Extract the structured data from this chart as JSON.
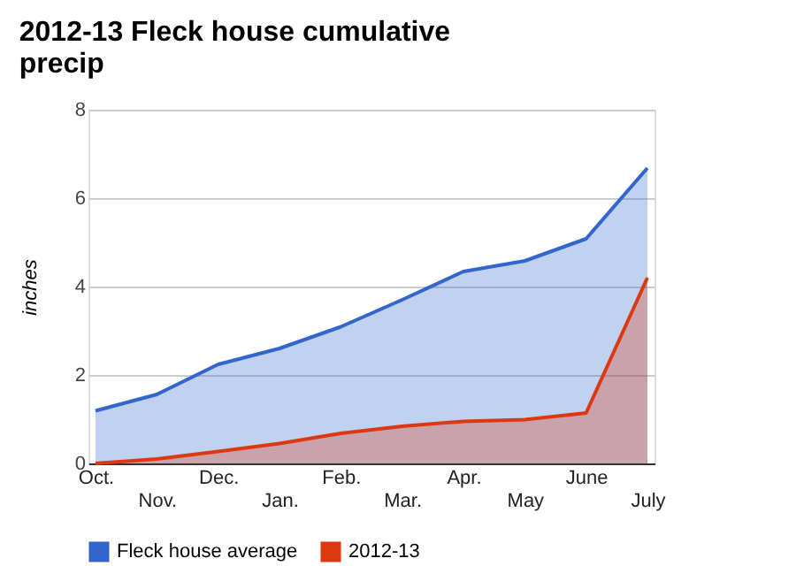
{
  "chart_data": {
    "type": "area",
    "title": "2012-13 Fleck house cumulative precip",
    "ylabel": "inches",
    "categories": [
      "Oct.",
      "Nov.",
      "Dec.",
      "Jan.",
      "Feb.",
      "Mar.",
      "Apr.",
      "May",
      "June",
      "July"
    ],
    "series": [
      {
        "name": "Fleck house average",
        "color": "#3366cc",
        "values": [
          1.19,
          1.56,
          2.24,
          2.6,
          3.09,
          3.7,
          4.34,
          4.58,
          5.08,
          6.68
        ]
      },
      {
        "name": "2012-13",
        "color": "#dc3912",
        "values": [
          0,
          0.1,
          0.27,
          0.45,
          0.68,
          0.84,
          0.95,
          0.99,
          1.14,
          4.2
        ]
      }
    ],
    "ylim": [
      0,
      8
    ],
    "yticks": [
      0,
      2,
      4,
      6,
      8
    ],
    "grid": "y",
    "legend": "bottom"
  }
}
